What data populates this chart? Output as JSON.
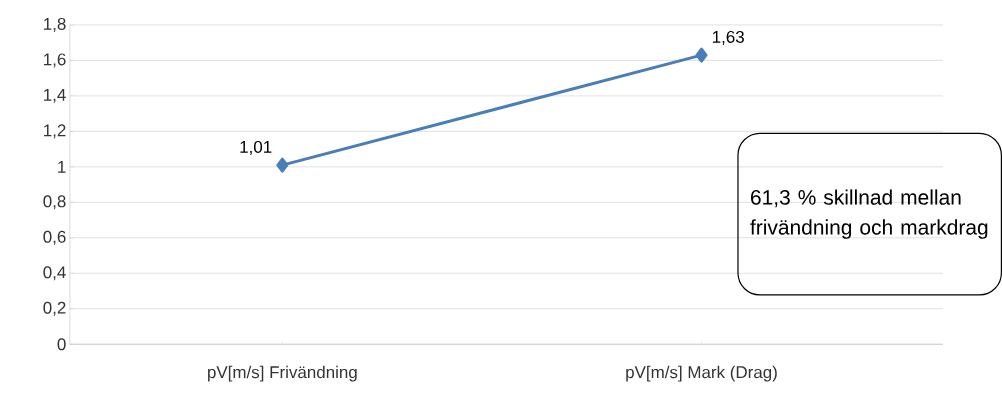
{
  "chart_data": {
    "type": "line",
    "categories": [
      "pV[m/s] Frivändning",
      "pV[m/s] Mark (Drag)"
    ],
    "series": [
      {
        "color": "#4a7ebb",
        "values": [
          1.01,
          1.63
        ],
        "value_labels": [
          "1,01",
          "1,63"
        ]
      }
    ],
    "ylim": [
      0,
      1.8
    ],
    "yticks": [
      0,
      {
        "value": 0.2,
        "label": "0,2"
      },
      {
        "value": 0.4,
        "label": "0,4"
      },
      {
        "value": 0.6,
        "label": "0,6"
      },
      {
        "value": 0.8,
        "label": "0,8"
      },
      1,
      {
        "value": 1.2,
        "label": "1,2"
      },
      {
        "value": 1.4,
        "label": "1,4"
      },
      {
        "value": 1.6,
        "label": "1,6"
      },
      {
        "value": 1.8,
        "label": "1,8"
      }
    ],
    "grid": "y",
    "marker": "diamond",
    "line_style": "solid",
    "annotations": [
      "61,3 % skillnad mellan frivändning och markdrag"
    ]
  }
}
